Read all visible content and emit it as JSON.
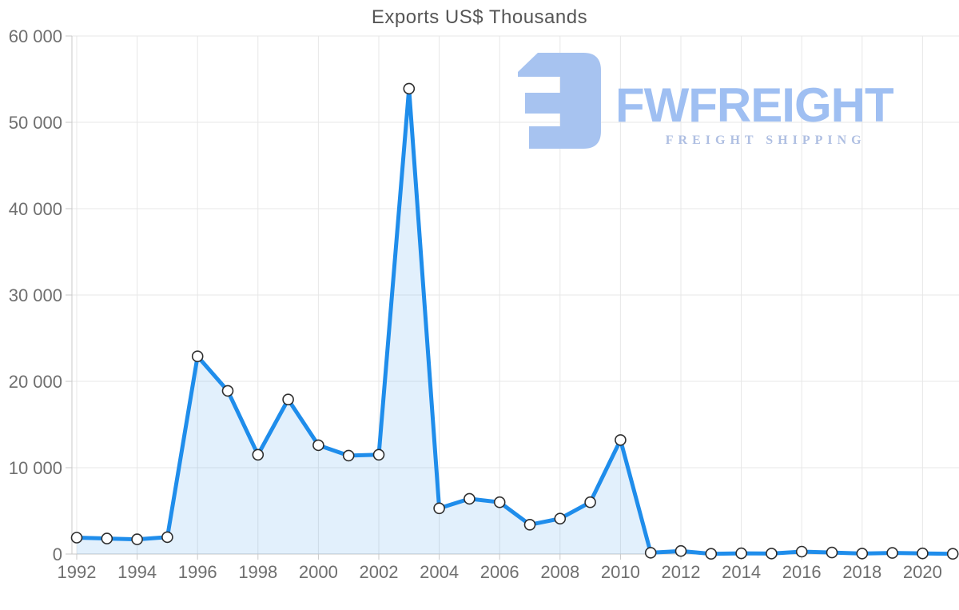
{
  "chart_data": {
    "type": "area",
    "title": "Exports US$ Thousands",
    "x": [
      1992,
      1993,
      1994,
      1995,
      1996,
      1997,
      1998,
      1999,
      2000,
      2001,
      2002,
      2003,
      2004,
      2005,
      2006,
      2007,
      2008,
      2009,
      2010,
      2011,
      2012,
      2013,
      2014,
      2015,
      2016,
      2017,
      2018,
      2019,
      2020,
      2021
    ],
    "series": [
      {
        "name": "Exports US$ Thousands",
        "values": [
          1900,
          1800,
          1700,
          1950,
          22900,
          18900,
          11500,
          17900,
          12600,
          11400,
          11500,
          53900,
          5300,
          6400,
          6000,
          3400,
          4100,
          6000,
          13200,
          150,
          350,
          30,
          80,
          60,
          280,
          180,
          60,
          130,
          70,
          30
        ]
      }
    ],
    "xlabel": "",
    "ylabel": "",
    "ylim": [
      0,
      60000
    ],
    "yticks": [
      0,
      10000,
      20000,
      30000,
      40000,
      50000,
      60000
    ],
    "x_tick_step": 2,
    "grid": true,
    "legend": "none",
    "marker": "circle",
    "styles": {
      "line_color": "#1f8deb",
      "area_fill": "rgba(31,141,235,0.13)",
      "marker_fill": "#ffffff",
      "marker_stroke": "#2e2e2e",
      "grid_color": "#e7e7e7",
      "axis_color": "#c9c9c9",
      "tick_label_color": "#6f6f6f",
      "title_color": "#565656"
    }
  },
  "logo": {
    "brand": "FWFREIGHT",
    "tagline": "FREIGHT SHIPPING",
    "icon": "fwfreight-logo-mark",
    "icon_color": "#a7c3f0",
    "brand_color": "#9fbff2",
    "tagline_color": "#afbfe2"
  }
}
